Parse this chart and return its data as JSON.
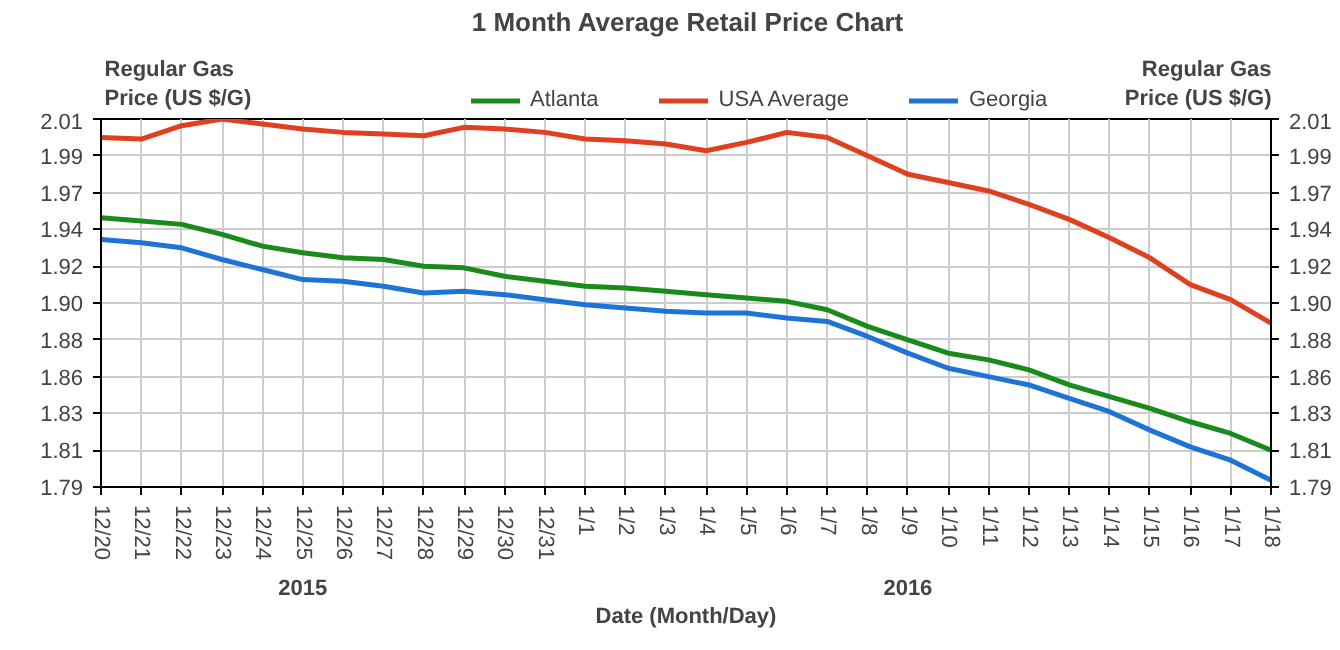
{
  "chart_data": {
    "type": "line",
    "title": "1 Month Average Retail Price Chart",
    "xlabel": "Date (Month/Day)",
    "ylabel": "Regular Gas\nPrice (US $/G)",
    "y2label": "Regular Gas\nPrice (US $/G)",
    "categories": [
      "12/20",
      "12/21",
      "12/22",
      "12/23",
      "12/24",
      "12/25",
      "12/26",
      "12/27",
      "12/28",
      "12/29",
      "12/30",
      "12/31",
      "1/1",
      "1/2",
      "1/3",
      "1/4",
      "1/5",
      "1/6",
      "1/7",
      "1/8",
      "1/9",
      "1/10",
      "1/11",
      "1/12",
      "1/13",
      "1/14",
      "1/15",
      "1/16",
      "1/17",
      "1/18"
    ],
    "series": [
      {
        "name": "Atlanta",
        "color": "#1a8a1a",
        "values": [
          1.951,
          1.949,
          1.947,
          1.941,
          1.934,
          1.93,
          1.927,
          1.926,
          1.922,
          1.921,
          1.916,
          1.913,
          1.91,
          1.909,
          1.907,
          1.905,
          1.903,
          1.901,
          1.896,
          1.886,
          1.878,
          1.87,
          1.866,
          1.86,
          1.851,
          1.844,
          1.837,
          1.829,
          1.822,
          1.812
        ]
      },
      {
        "name": "USA Average",
        "color": "#e0401f",
        "values": [
          1.999,
          1.998,
          2.006,
          2.01,
          2.007,
          2.004,
          2.002,
          2.001,
          2.0,
          2.005,
          2.004,
          2.002,
          1.998,
          1.997,
          1.995,
          1.991,
          1.996,
          2.002,
          1.999,
          1.988,
          1.977,
          1.972,
          1.967,
          1.959,
          1.95,
          1.939,
          1.927,
          1.911,
          1.902,
          1.888
        ]
      },
      {
        "name": "Georgia",
        "color": "#1e73d6",
        "values": [
          1.938,
          1.936,
          1.933,
          1.926,
          1.92,
          1.914,
          1.913,
          1.91,
          1.906,
          1.907,
          1.905,
          1.902,
          1.899,
          1.897,
          1.895,
          1.894,
          1.894,
          1.891,
          1.889,
          1.88,
          1.87,
          1.861,
          1.856,
          1.851,
          1.843,
          1.835,
          1.824,
          1.814,
          1.806,
          1.794
        ]
      }
    ],
    "ylim": [
      1.79,
      2.01
    ],
    "yticks": [
      {
        "value": 1.79,
        "label": "1.79"
      },
      {
        "value": 1.812,
        "label": "1.81"
      },
      {
        "value": 1.834,
        "label": "1.83"
      },
      {
        "value": 1.856,
        "label": "1.86"
      },
      {
        "value": 1.878,
        "label": "1.88"
      },
      {
        "value": 1.9,
        "label": "1.90"
      },
      {
        "value": 1.922,
        "label": "1.92"
      },
      {
        "value": 1.944,
        "label": "1.94"
      },
      {
        "value": 1.966,
        "label": "1.97"
      },
      {
        "value": 1.988,
        "label": "1.99"
      },
      {
        "value": 2.01,
        "label": "2.01"
      }
    ],
    "y2lim": [
      1.79,
      2.01
    ],
    "y2ticks": [
      {
        "value": 1.79,
        "label": "1.79"
      },
      {
        "value": 1.812,
        "label": "1.81"
      },
      {
        "value": 1.834,
        "label": "1.83"
      },
      {
        "value": 1.856,
        "label": "1.86"
      },
      {
        "value": 1.878,
        "label": "1.88"
      },
      {
        "value": 1.9,
        "label": "1.90"
      },
      {
        "value": 1.922,
        "label": "1.92"
      },
      {
        "value": 1.944,
        "label": "1.94"
      },
      {
        "value": 1.966,
        "label": "1.97"
      },
      {
        "value": 1.988,
        "label": "1.99"
      },
      {
        "value": 2.01,
        "label": "2.01"
      }
    ],
    "annotations": [
      "2015",
      "2016"
    ],
    "grid": true,
    "legend": "top",
    "marker": "none",
    "line_style": "solid"
  }
}
